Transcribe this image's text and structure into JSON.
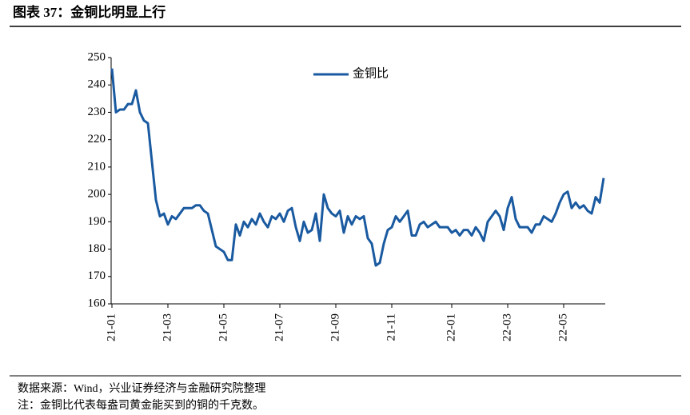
{
  "chart_data": {
    "type": "line",
    "title": "图表 37：金铜比明显上行",
    "source": "数据来源：Wind，兴业证券经济与金融研究院整理",
    "note": "注：金铜比代表每盎司黄金能买到的铜的千克数。",
    "categories": [
      "21-01",
      null,
      null,
      null,
      null,
      null,
      null,
      null,
      null,
      null,
      null,
      null,
      null,
      null,
      "21-03",
      null,
      null,
      null,
      null,
      null,
      null,
      null,
      null,
      null,
      null,
      null,
      null,
      null,
      "21-05",
      null,
      null,
      null,
      null,
      null,
      null,
      null,
      null,
      null,
      null,
      null,
      null,
      null,
      "21-07",
      null,
      null,
      null,
      null,
      null,
      null,
      null,
      null,
      null,
      null,
      null,
      null,
      null,
      "21-09",
      null,
      null,
      null,
      null,
      null,
      null,
      null,
      null,
      null,
      null,
      null,
      null,
      null,
      "21-11",
      null,
      null,
      null,
      null,
      null,
      null,
      null,
      null,
      null,
      null,
      null,
      null,
      null,
      null,
      "22-01",
      null,
      null,
      null,
      null,
      null,
      null,
      null,
      null,
      null,
      null,
      null,
      null,
      null,
      "22-03",
      null,
      null,
      null,
      null,
      null,
      null,
      null,
      null,
      null,
      null,
      null,
      null,
      null,
      "22-05",
      null,
      null,
      null,
      null,
      null,
      null,
      null,
      null,
      null,
      null
    ],
    "series": [
      {
        "name": "金铜比",
        "color": "#1a5aa0",
        "values": [
          246,
          230,
          231,
          231,
          233,
          233,
          238,
          230,
          227,
          226,
          212,
          198,
          192,
          193,
          189,
          192,
          191,
          193,
          195,
          195,
          195,
          196,
          196,
          194,
          193,
          187,
          181,
          180,
          179,
          176,
          176,
          189,
          185,
          190,
          188,
          191,
          189,
          193,
          190,
          188,
          192,
          191,
          193,
          190,
          194,
          195,
          188,
          183,
          190,
          186,
          187,
          193,
          183,
          200,
          195,
          193,
          192,
          194,
          186,
          192,
          189,
          192,
          191,
          192,
          184,
          182,
          174,
          175,
          182,
          187,
          188,
          192,
          190,
          192,
          194,
          185,
          185,
          189,
          190,
          188,
          189,
          190,
          188,
          188,
          188,
          186,
          187,
          185,
          187,
          187,
          185,
          188,
          186,
          183,
          190,
          192,
          194,
          192,
          187,
          195,
          199,
          191,
          188,
          188,
          188,
          186,
          189,
          189,
          192,
          191,
          190,
          193,
          197,
          200,
          201,
          195,
          197,
          195,
          196,
          194,
          193,
          199,
          197,
          206
        ]
      }
    ],
    "ylim": [
      160,
      250
    ],
    "yticks": [
      160,
      170,
      180,
      190,
      200,
      210,
      220,
      230,
      240,
      250
    ],
    "legend": "top"
  }
}
